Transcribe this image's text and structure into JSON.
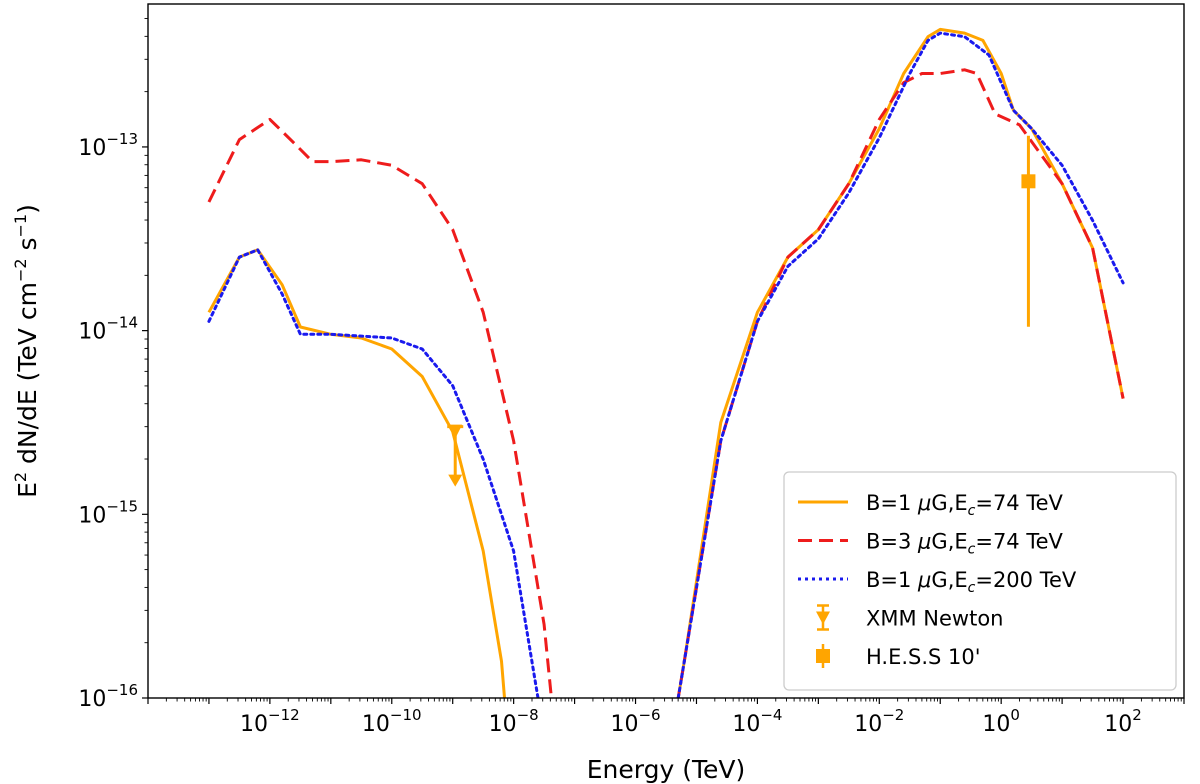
{
  "chart_data": {
    "type": "line",
    "xscale": "log",
    "yscale": "log",
    "xlim": [
      1e-14,
      1000
    ],
    "ylim": [
      1e-16,
      6e-13
    ],
    "xlabel": "Energy (TeV)",
    "ylabel": {
      "prefix": "E",
      "prefix_sup": "2",
      "mid": " dN/dE (TeV cm",
      "sup1": "−2",
      "mid2": " s",
      "sup2": "−1",
      "suffix": ")"
    },
    "x_ticks": [
      {
        "value": 1e-12,
        "base": "10",
        "exp": "−12"
      },
      {
        "value": 1e-10,
        "base": "10",
        "exp": "−10"
      },
      {
        "value": 1e-08,
        "base": "10",
        "exp": "−8"
      },
      {
        "value": 1e-06,
        "base": "10",
        "exp": "−6"
      },
      {
        "value": 0.0001,
        "base": "10",
        "exp": "−4"
      },
      {
        "value": 0.01,
        "base": "10",
        "exp": "−2"
      },
      {
        "value": 1,
        "base": "10",
        "exp": "0"
      },
      {
        "value": 100,
        "base": "10",
        "exp": "2"
      }
    ],
    "y_ticks": [
      {
        "value": 1e-16,
        "base": "10",
        "exp": "−16"
      },
      {
        "value": 1e-15,
        "base": "10",
        "exp": "−15"
      },
      {
        "value": 1e-14,
        "base": "10",
        "exp": "−14"
      },
      {
        "value": 1e-13,
        "base": "10",
        "exp": "−13"
      }
    ],
    "series": [
      {
        "name": "B=1 μG, Ec=74 TeV",
        "color": "#ffa500",
        "style": "solid",
        "points": [
          [
            -13,
            -13.9
          ],
          [
            -12.5,
            -13.6
          ],
          [
            -12.2,
            -13.56
          ],
          [
            -11.8,
            -13.75
          ],
          [
            -11.5,
            -13.98
          ],
          [
            -11,
            -14.02
          ],
          [
            -10.5,
            -14.04
          ],
          [
            -10,
            -14.1
          ],
          [
            -9.5,
            -14.25
          ],
          [
            -9,
            -14.55
          ],
          [
            -8.5,
            -15.2
          ],
          [
            -8.2,
            -15.8
          ],
          [
            -8,
            -16.6
          ],
          "gap",
          [
            -5.6,
            -16.6
          ],
          [
            -5.2,
            -15.8
          ],
          [
            -4.6,
            -14.5
          ],
          [
            -4,
            -13.9
          ],
          [
            -3.5,
            -13.6
          ],
          [
            -3,
            -13.45
          ],
          [
            -2.5,
            -13.2
          ],
          [
            -2,
            -12.9
          ],
          [
            -1.6,
            -12.6
          ],
          [
            -1.2,
            -12.4
          ],
          [
            -1,
            -12.36
          ],
          [
            -0.6,
            -12.38
          ],
          [
            -0.3,
            -12.42
          ],
          [
            0,
            -12.6
          ],
          [
            0.2,
            -12.8
          ],
          [
            0.5,
            -12.9
          ],
          [
            1,
            -13.2
          ],
          [
            1.5,
            -13.55
          ],
          [
            2,
            -14.37
          ]
        ]
      },
      {
        "name": "B=3 μG, Ec=74 TeV",
        "color": "#ee1c1c",
        "style": "dashed",
        "points": [
          [
            -13,
            -13.3
          ],
          [
            -12.5,
            -12.96
          ],
          [
            -12,
            -12.85
          ],
          [
            -11.6,
            -12.98
          ],
          [
            -11.3,
            -13.08
          ],
          [
            -11,
            -13.08
          ],
          [
            -10.5,
            -13.07
          ],
          [
            -10,
            -13.1
          ],
          [
            -9.5,
            -13.2
          ],
          [
            -9,
            -13.45
          ],
          [
            -8.5,
            -13.9
          ],
          [
            -8,
            -14.6
          ],
          [
            -7.5,
            -15.6
          ],
          [
            -7.2,
            -16.6
          ],
          "gap",
          [
            -5.6,
            -16.6
          ],
          [
            -5.2,
            -15.8
          ],
          [
            -4.6,
            -14.6
          ],
          [
            -4,
            -13.95
          ],
          [
            -3.5,
            -13.6
          ],
          [
            -3,
            -13.45
          ],
          [
            -2.5,
            -13.2
          ],
          [
            -2,
            -12.85
          ],
          [
            -1.6,
            -12.65
          ],
          [
            -1.3,
            -12.6
          ],
          [
            -1,
            -12.6
          ],
          [
            -0.6,
            -12.58
          ],
          [
            -0.4,
            -12.6
          ],
          [
            -0.1,
            -12.82
          ],
          [
            0.3,
            -12.88
          ],
          [
            1,
            -13.2
          ],
          [
            1.5,
            -13.55
          ],
          [
            2,
            -14.37
          ]
        ]
      },
      {
        "name": "B=1 μG, Ec=200 TeV",
        "color": "#1a1aee",
        "style": "dotted",
        "points": [
          [
            -13,
            -13.95
          ],
          [
            -12.5,
            -13.6
          ],
          [
            -12.2,
            -13.56
          ],
          [
            -11.8,
            -13.8
          ],
          [
            -11.5,
            -14.02
          ],
          [
            -11,
            -14.02
          ],
          [
            -10.5,
            -14.03
          ],
          [
            -10,
            -14.04
          ],
          [
            -9.5,
            -14.1
          ],
          [
            -9,
            -14.3
          ],
          [
            -8.5,
            -14.7
          ],
          [
            -8,
            -15.2
          ],
          [
            -7.6,
            -16
          ],
          [
            -7.45,
            -16.6
          ],
          "gap",
          [
            -5.6,
            -16.6
          ],
          [
            -5.2,
            -15.8
          ],
          [
            -4.6,
            -14.6
          ],
          [
            -4,
            -13.95
          ],
          [
            -3.5,
            -13.65
          ],
          [
            -3,
            -13.5
          ],
          [
            -2.5,
            -13.25
          ],
          [
            -2,
            -12.95
          ],
          [
            -1.5,
            -12.6
          ],
          [
            -1.2,
            -12.42
          ],
          [
            -1,
            -12.38
          ],
          [
            -0.6,
            -12.4
          ],
          [
            -0.2,
            -12.5
          ],
          [
            0.2,
            -12.8
          ],
          [
            0.5,
            -12.9
          ],
          [
            1,
            -13.1
          ],
          [
            1.5,
            -13.4
          ],
          [
            2,
            -13.74
          ]
        ]
      }
    ],
    "data_points": [
      {
        "name": "XMM Newton",
        "color": "#ffa500",
        "marker": "triangle-down",
        "x": 1.1e-09,
        "y": 3e-15,
        "upper_limit": true,
        "arrow_to": 1.45e-15
      },
      {
        "name": "H.E.S.S 10'",
        "color": "#ffa500",
        "marker": "square",
        "x": 2.8,
        "y": 6.5e-14,
        "err_low": 1.05e-14,
        "err_high": 1.15e-13
      }
    ],
    "legend": {
      "placement": "lower-right",
      "entries": [
        {
          "kind": "line",
          "style": "solid",
          "color": "#ffa500",
          "pre": "B=1 ",
          "mu": "μ",
          "mid": "G,E",
          "sub": "c",
          "post": "=74 TeV"
        },
        {
          "kind": "line",
          "style": "dashed",
          "color": "#ee1c1c",
          "pre": "B=3 ",
          "mu": "μ",
          "mid": "G,E",
          "sub": "c",
          "post": "=74 TeV"
        },
        {
          "kind": "line",
          "style": "dotted",
          "color": "#1a1aee",
          "pre": "B=1 ",
          "mu": "μ",
          "mid": "G,E",
          "sub": "c",
          "post": "=200 TeV"
        },
        {
          "kind": "errorbar-ul",
          "color": "#ffa500",
          "label": "XMM Newton"
        },
        {
          "kind": "errorbar-sq",
          "color": "#ffa500",
          "label": "H.E.S.S 10'"
        }
      ]
    }
  }
}
